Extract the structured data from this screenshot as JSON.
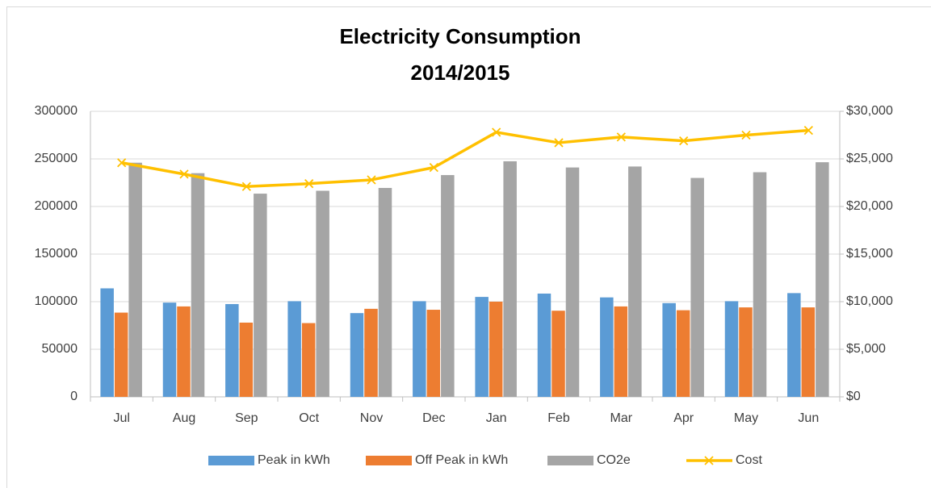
{
  "chart_data": {
    "type": "bar-line",
    "title": [
      "Electricity Consumption",
      "2014/2015"
    ],
    "categories": [
      "Jul",
      "Aug",
      "Sep",
      "Oct",
      "Nov",
      "Dec",
      "Jan",
      "Feb",
      "Mar",
      "Apr",
      "May",
      "Jun"
    ],
    "series": [
      {
        "name": "Peak in kWh",
        "type": "bar",
        "color": "#5b9bd5",
        "values": [
          114000,
          99000,
          97500,
          100500,
          88000,
          100500,
          105000,
          108500,
          104500,
          98500,
          100500,
          109000
        ]
      },
      {
        "name": "Off Peak in kWh",
        "type": "bar",
        "color": "#ed7d31",
        "values": [
          88500,
          95000,
          78000,
          77500,
          92500,
          91500,
          100000,
          90500,
          95000,
          91000,
          94000,
          94000
        ]
      },
      {
        "name": "CO2e",
        "type": "bar",
        "color": "#a5a5a5",
        "values": [
          246000,
          235000,
          213500,
          216500,
          219500,
          233000,
          247500,
          241000,
          242000,
          230000,
          236000,
          246500
        ]
      },
      {
        "name": "Cost",
        "type": "line",
        "axis": "y2",
        "color": "#ffc000",
        "values": [
          24600,
          23400,
          22100,
          22400,
          22800,
          24100,
          27800,
          26700,
          27300,
          26900,
          27500,
          28000
        ]
      }
    ],
    "ylim": [
      0,
      300000
    ],
    "yticks": [
      0,
      50000,
      100000,
      150000,
      200000,
      250000,
      300000
    ],
    "y2lim": [
      0,
      30000
    ],
    "y2ticks": [
      {
        "value": 0,
        "label": "$0"
      },
      {
        "value": 5000,
        "label": "$5,000"
      },
      {
        "value": 10000,
        "label": "$10,000"
      },
      {
        "value": 15000,
        "label": "$15,000"
      },
      {
        "value": 20000,
        "label": "$20,000"
      },
      {
        "value": 25000,
        "label": "$25,000"
      },
      {
        "value": 30000,
        "label": "$30,000"
      }
    ],
    "grid": true,
    "legend": "bottom"
  }
}
